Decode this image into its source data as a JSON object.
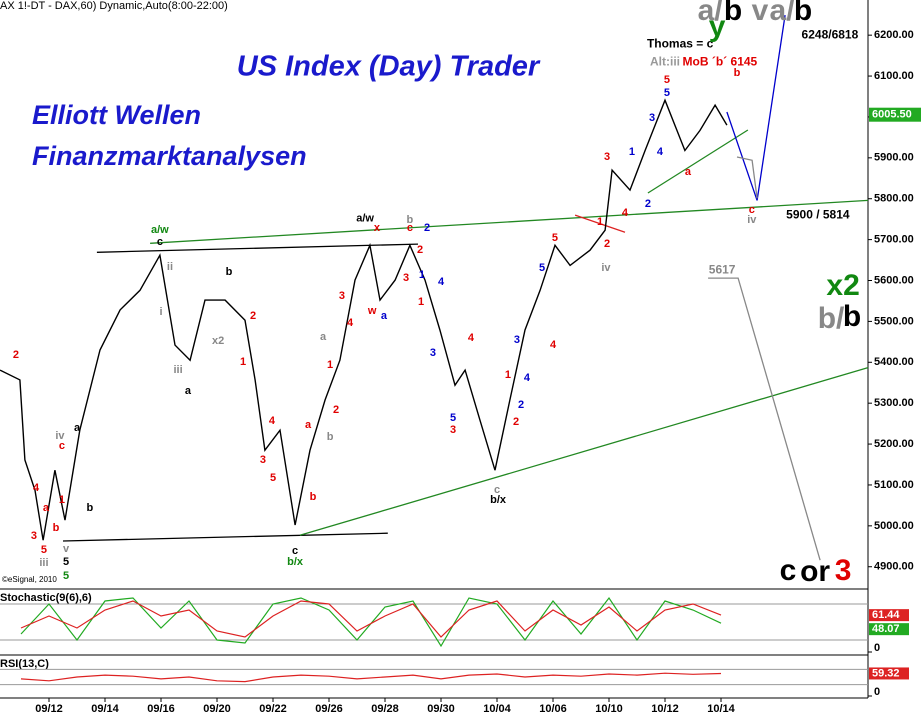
{
  "chart_data": [
    {
      "type": "line",
      "header": "AX 1!-DT - DAX,60) Dynamic,Auto(8:00-22:00)",
      "title": "US Index (Day) Trader",
      "subtitle_lines": [
        "Elliott Wellen",
        "Finanzmarktanalysen"
      ],
      "copyright": "©eSignal, 2010",
      "color": "#000000",
      "x": [
        -1.75,
        -1.04,
        -0.86,
        -0.5,
        -0.21,
        0.21,
        0.57,
        1.1,
        1.82,
        2.54,
        3.25,
        3.96,
        4.5,
        5.04,
        5.57,
        6.29,
        7,
        7.36,
        7.71,
        8.25,
        8.79,
        9.32,
        9.86,
        10.39,
        10.93,
        11.46,
        11.82,
        12.36,
        12.89,
        13.43,
        13.96,
        14.5,
        14.86,
        15.39,
        15.93,
        16.46,
        17,
        17.54,
        18.07,
        18.61,
        19.32,
        19.86,
        20.11,
        20.75,
        21.29,
        22,
        22.71,
        23.25,
        23.79,
        24.21
      ],
      "values": [
        5381,
        5357,
        5161,
        5087,
        4965,
        5136,
        5014,
        5234,
        5430,
        5528,
        5576,
        5662,
        5442,
        5405,
        5552,
        5552,
        5503,
        5357,
        5185,
        5234,
        5002,
        5185,
        5308,
        5405,
        5601,
        5686,
        5552,
        5601,
        5686,
        5601,
        5479,
        5344,
        5381,
        5259,
        5136,
        5308,
        5479,
        5576,
        5686,
        5637,
        5674,
        5723,
        5870,
        5821,
        5918,
        6041,
        5918,
        5967,
        6029,
        5980
      ],
      "xlim": [
        -1.75,
        29.25
      ],
      "ylim": [
        4848,
        6286
      ],
      "xticks": [
        {
          "value": 0,
          "label": "09/12"
        },
        {
          "value": 2,
          "label": "09/14"
        },
        {
          "value": 4,
          "label": "09/16"
        },
        {
          "value": 6,
          "label": "09/20"
        },
        {
          "value": 8,
          "label": "09/22"
        },
        {
          "value": 10,
          "label": "09/26"
        },
        {
          "value": 12,
          "label": "09/28"
        },
        {
          "value": 14,
          "label": "09/30"
        },
        {
          "value": 16,
          "label": "10/04"
        },
        {
          "value": 18,
          "label": "10/06"
        },
        {
          "value": 20,
          "label": "10/10"
        },
        {
          "value": 22,
          "label": "10/12"
        },
        {
          "value": 24,
          "label": "10/14"
        }
      ],
      "yticks": [
        {
          "value": 4900,
          "label": "4900.00"
        },
        {
          "value": 5000,
          "label": "5000.00"
        },
        {
          "value": 5100,
          "label": "5100.00"
        },
        {
          "value": 5200,
          "label": "5200.00"
        },
        {
          "value": 5300,
          "label": "5300.00"
        },
        {
          "value": 5400,
          "label": "5400.00"
        },
        {
          "value": 5500,
          "label": "5500.00"
        },
        {
          "value": 5600,
          "label": "5600.00"
        },
        {
          "value": 5700,
          "label": "5700.00"
        },
        {
          "value": 5800,
          "label": "5800.00"
        },
        {
          "value": 5900,
          "label": "5900.00"
        },
        {
          "value": 6000,
          "label": "6000.00"
        },
        {
          "value": 6100,
          "label": "6100.00"
        },
        {
          "value": 6200,
          "label": "6200.00"
        }
      ],
      "last_price": {
        "value": 6005.5,
        "label": "6005.50",
        "color": "#22aa22"
      },
      "trendlines": [
        {
          "color": "#000000",
          "x": [
            1.71,
            13.18
          ],
          "y": [
            5669,
            5689
          ]
        },
        {
          "color": "#228822",
          "x": [
            3.61,
            29.25
          ],
          "y": [
            5691,
            5796
          ]
        },
        {
          "color": "#000000",
          "x": [
            0.5,
            12.1
          ],
          "y": [
            4963,
            4982
          ]
        },
        {
          "color": "#228822",
          "x": [
            8.96,
            29.25
          ],
          "y": [
            4977,
            5387
          ]
        },
        {
          "color": "#228822",
          "x": [
            21.39,
            24.96
          ],
          "y": [
            5814,
            5968
          ]
        },
        {
          "color": "#dd2222",
          "x": [
            18.79,
            20.57
          ],
          "y": [
            5760,
            5718
          ]
        },
        {
          "color": "#0000cc",
          "x": [
            24.21,
            25.29,
            26.29
          ],
          "y": [
            6012,
            5796,
            6249
          ]
        },
        {
          "color": "#888888",
          "x": [
            23.54,
            24.61,
            27.54
          ],
          "y": [
            5606,
            5606,
            4916
          ]
        },
        {
          "color": "#888888",
          "x": [
            24.57,
            25.11,
            25.29
          ],
          "y": [
            5902,
            5894,
            5801
          ]
        }
      ],
      "wave_labels": [
        {
          "text": "a/w",
          "x": 3.96,
          "y": 5723,
          "color": "#118811"
        },
        {
          "text": "c",
          "x": 3.96,
          "y": 5694,
          "color": "#000000"
        },
        {
          "text": "a/w",
          "x": 11.29,
          "y": 5752,
          "color": "#000000"
        },
        {
          "text": "c",
          "x": 12.89,
          "y": 5728,
          "color": "#e00000"
        },
        {
          "text": "b",
          "x": 12.89,
          "y": 5748,
          "color": "#888888"
        },
        {
          "text": "b/x",
          "x": 16.04,
          "y": 5063,
          "color": "#000000"
        },
        {
          "text": "c",
          "x": 16.0,
          "y": 5087,
          "color": "#888888"
        },
        {
          "text": "b/x",
          "x": 8.79,
          "y": 4911,
          "color": "#118811"
        },
        {
          "text": "c",
          "x": 8.79,
          "y": 4938,
          "color": "#000000"
        },
        {
          "text": "5",
          "x": 22.07,
          "y": 6090,
          "color": "#e00000"
        },
        {
          "text": "5",
          "x": 22.07,
          "y": 6058,
          "color": "#0000cc"
        },
        {
          "text": "3",
          "x": 21.54,
          "y": 5997,
          "color": "#0000cc"
        },
        {
          "text": "4",
          "x": 21.82,
          "y": 5914,
          "color": "#0000cc"
        },
        {
          "text": "1",
          "x": 20.82,
          "y": 5914,
          "color": "#0000cc"
        },
        {
          "text": "2",
          "x": 21.39,
          "y": 5787,
          "color": "#0000cc"
        },
        {
          "text": "3",
          "x": 19.93,
          "y": 5902,
          "color": "#e00000"
        },
        {
          "text": "4",
          "x": 20.57,
          "y": 5765,
          "color": "#e00000"
        },
        {
          "text": "2",
          "x": 19.93,
          "y": 5689,
          "color": "#e00000"
        },
        {
          "text": "1",
          "x": 19.68,
          "y": 5743,
          "color": "#e00000"
        },
        {
          "text": "a",
          "x": 22.82,
          "y": 5865,
          "color": "#e00000"
        },
        {
          "text": "b",
          "x": 24.57,
          "y": 6107,
          "color": "#e00000"
        },
        {
          "text": "5",
          "x": 18.07,
          "y": 5704,
          "color": "#e00000"
        },
        {
          "text": "5",
          "x": 17.61,
          "y": 5630,
          "color": "#0000cc"
        },
        {
          "text": "4",
          "x": 18.0,
          "y": 5442,
          "color": "#e00000"
        },
        {
          "text": "3",
          "x": 16.71,
          "y": 5454,
          "color": "#0000cc"
        },
        {
          "text": "4",
          "x": 17.07,
          "y": 5361,
          "color": "#0000cc"
        },
        {
          "text": "2",
          "x": 16.86,
          "y": 5295,
          "color": "#0000cc"
        },
        {
          "text": "2",
          "x": 16.68,
          "y": 5254,
          "color": "#e00000"
        },
        {
          "text": "1",
          "x": 16.39,
          "y": 5369,
          "color": "#e00000"
        },
        {
          "text": "4",
          "x": 10.75,
          "y": 5496,
          "color": "#e00000"
        },
        {
          "text": "3",
          "x": 10.46,
          "y": 5562,
          "color": "#e00000"
        },
        {
          "text": "4",
          "x": 14.0,
          "y": 5596,
          "color": "#0000cc"
        },
        {
          "text": "3",
          "x": 13.71,
          "y": 5422,
          "color": "#0000cc"
        },
        {
          "text": "5",
          "x": 14.43,
          "y": 5263,
          "color": "#0000cc"
        },
        {
          "text": "3",
          "x": 14.43,
          "y": 5234,
          "color": "#e00000"
        },
        {
          "text": "4",
          "x": 15.07,
          "y": 5459,
          "color": "#e00000"
        },
        {
          "text": "1",
          "x": 13.29,
          "y": 5547,
          "color": "#e00000"
        },
        {
          "text": "2",
          "x": 13.25,
          "y": 5674,
          "color": "#e00000"
        },
        {
          "text": "3",
          "x": 12.75,
          "y": 5606,
          "color": "#e00000"
        },
        {
          "text": "1",
          "x": 13.32,
          "y": 5613,
          "color": "#0000cc"
        },
        {
          "text": "2",
          "x": 13.5,
          "y": 5728,
          "color": "#0000cc"
        },
        {
          "text": "w",
          "x": 11.54,
          "y": 5525,
          "color": "#e00000"
        },
        {
          "text": "a",
          "x": 11.96,
          "y": 5513,
          "color": "#0000cc"
        },
        {
          "text": "x",
          "x": 11.71,
          "y": 5728,
          "color": "#e00000"
        },
        {
          "text": "1",
          "x": 6.93,
          "y": 5400,
          "color": "#e00000"
        },
        {
          "text": "2",
          "x": 7.29,
          "y": 5513,
          "color": "#e00000"
        },
        {
          "text": "3",
          "x": 7.64,
          "y": 5161,
          "color": "#e00000"
        },
        {
          "text": "4",
          "x": 7.96,
          "y": 5256,
          "color": "#e00000"
        },
        {
          "text": "5",
          "x": 8.0,
          "y": 5117,
          "color": "#e00000"
        },
        {
          "text": "a",
          "x": 9.25,
          "y": 5246,
          "color": "#e00000"
        },
        {
          "text": "b",
          "x": 9.43,
          "y": 5070,
          "color": "#e00000"
        },
        {
          "text": "2",
          "x": 10.25,
          "y": 5283,
          "color": "#e00000"
        },
        {
          "text": "1",
          "x": 10.04,
          "y": 5393,
          "color": "#e00000"
        },
        {
          "text": "a",
          "x": 9.79,
          "y": 5461,
          "color": "#888888"
        },
        {
          "text": "b",
          "x": 10.04,
          "y": 5217,
          "color": "#888888"
        },
        {
          "text": "1",
          "x": 0.46,
          "y": 5063,
          "color": "#e00000"
        },
        {
          "text": "2",
          "x": -1.18,
          "y": 5417,
          "color": "#e00000"
        },
        {
          "text": "3",
          "x": -0.54,
          "y": 4975,
          "color": "#e00000"
        },
        {
          "text": "4",
          "x": -0.46,
          "y": 5092,
          "color": "#e00000"
        },
        {
          "text": "5",
          "x": -0.18,
          "y": 4941,
          "color": "#e00000"
        },
        {
          "text": "a",
          "x": -0.11,
          "y": 5043,
          "color": "#e00000"
        },
        {
          "text": "b",
          "x": 0.25,
          "y": 4995,
          "color": "#e00000"
        },
        {
          "text": "c",
          "x": 0.46,
          "y": 5195,
          "color": "#e00000"
        },
        {
          "text": "iv",
          "x": 0.39,
          "y": 5220,
          "color": "#888888"
        },
        {
          "text": "a",
          "x": 1.0,
          "y": 5239,
          "color": "#000000"
        },
        {
          "text": "b",
          "x": 1.46,
          "y": 5043,
          "color": "#000000"
        },
        {
          "text": "5",
          "x": 0.61,
          "y": 4911,
          "color": "#000000"
        },
        {
          "text": "5",
          "x": 0.61,
          "y": 4877,
          "color": "#118811"
        },
        {
          "text": "iii",
          "x": -0.18,
          "y": 4909,
          "color": "#888888"
        },
        {
          "text": "v",
          "x": 0.61,
          "y": 4943,
          "color": "#888888"
        },
        {
          "text": "b",
          "x": 6.43,
          "y": 5620,
          "color": "#000000"
        },
        {
          "text": "a",
          "x": 4.96,
          "y": 5330,
          "color": "#000000"
        },
        {
          "text": "iii",
          "x": 4.61,
          "y": 5381,
          "color": "#888888"
        },
        {
          "text": "x2",
          "x": 6.04,
          "y": 5452,
          "color": "#888888"
        },
        {
          "text": "i",
          "x": 4.0,
          "y": 5523,
          "color": "#888888"
        },
        {
          "text": "ii",
          "x": 4.32,
          "y": 5633,
          "color": "#888888"
        },
        {
          "text": "iv",
          "x": 19.89,
          "y": 5630,
          "color": "#888888"
        },
        {
          "text": "iv",
          "x": 25.1,
          "y": 5748,
          "color": "#888888"
        },
        {
          "text": "c",
          "x": 25.1,
          "y": 5772,
          "color": "#e00000"
        }
      ],
      "big_labels": [
        {
          "text": "a/",
          "x": 23.61,
          "y": 6256,
          "color": "#888888"
        },
        {
          "text": "b",
          "x": 24.43,
          "y": 6256,
          "color": "#000000"
        },
        {
          "text": "y",
          "x": 23.86,
          "y": 6217,
          "color": "#118811"
        },
        {
          "text": "v",
          "x": 25.39,
          "y": 6256,
          "color": "#888888"
        },
        {
          "text": "a/",
          "x": 26.18,
          "y": 6256,
          "color": "#888888"
        },
        {
          "text": "b",
          "x": 26.93,
          "y": 6256,
          "color": "#000000"
        },
        {
          "text": "b/",
          "x": 27.93,
          "y": 5503,
          "color": "#888888"
        },
        {
          "text": "b",
          "x": 28.68,
          "y": 5508,
          "color": "#000000"
        },
        {
          "text": "x2",
          "x": 28.36,
          "y": 5584,
          "color": "#118811"
        },
        {
          "text": "c",
          "x": 26.39,
          "y": 4887,
          "color": "#000000"
        },
        {
          "text": "or",
          "x": 27.36,
          "y": 4884,
          "color": "#000000"
        },
        {
          "text": "3",
          "x": 28.36,
          "y": 4887,
          "color": "#e00000"
        }
      ],
      "notes": [
        {
          "text": "Thomas = c",
          "x": 22.54,
          "y": 6178,
          "color": "#000000"
        },
        {
          "text": "Alt:iii",
          "x": 22.0,
          "y": 6134,
          "color": "#999999"
        },
        {
          "text": "MoB ´b´ 6145",
          "x": 23.96,
          "y": 6134,
          "color": "#e00000"
        },
        {
          "text": "6248/6818",
          "x": 27.89,
          "y": 6200,
          "color": "#000000"
        },
        {
          "text": "5900 / 5814",
          "x": 27.46,
          "y": 5760,
          "color": "#000000"
        },
        {
          "text": "5617",
          "x": 24.04,
          "y": 5625,
          "color": "#888888"
        }
      ]
    },
    {
      "type": "line",
      "title": "Stochastic(9(6),6)",
      "ylim": [
        0,
        100
      ],
      "yticks": [
        0
      ],
      "levels": [
        20,
        80
      ],
      "x": [
        -1,
        0,
        1,
        2,
        3,
        4,
        5,
        6,
        7,
        8,
        9,
        10,
        11,
        12,
        13,
        14,
        15,
        16,
        17,
        18,
        19,
        20,
        21,
        22,
        23,
        24
      ],
      "series": [
        {
          "name": "%K",
          "color": "#22aa22",
          "values": [
            30,
            80,
            20,
            85,
            90,
            40,
            85,
            20,
            15,
            80,
            90,
            70,
            20,
            75,
            85,
            10,
            90,
            80,
            20,
            85,
            30,
            90,
            20,
            85,
            70,
            48.07
          ]
        },
        {
          "name": "%D",
          "color": "#dd2222",
          "values": [
            40,
            60,
            40,
            70,
            85,
            60,
            70,
            35,
            25,
            60,
            85,
            80,
            35,
            60,
            80,
            25,
            70,
            85,
            35,
            70,
            45,
            75,
            35,
            70,
            80,
            61.44
          ]
        }
      ]
    },
    {
      "type": "line",
      "title": "RSI(13,C)",
      "ylim": [
        0,
        100
      ],
      "yticks": [
        0
      ],
      "levels": [
        30,
        70
      ],
      "x": [
        -1,
        0,
        1,
        2,
        3,
        4,
        5,
        6,
        7,
        8,
        9,
        10,
        11,
        12,
        13,
        14,
        15,
        16,
        17,
        18,
        19,
        20,
        21,
        22,
        23,
        24
      ],
      "series": [
        {
          "name": "RSI",
          "color": "#dd2222",
          "values": [
            45,
            40,
            50,
            55,
            52,
            45,
            50,
            40,
            38,
            50,
            55,
            52,
            45,
            50,
            55,
            45,
            55,
            58,
            50,
            55,
            52,
            58,
            55,
            60,
            57,
            59.32
          ]
        }
      ]
    }
  ]
}
